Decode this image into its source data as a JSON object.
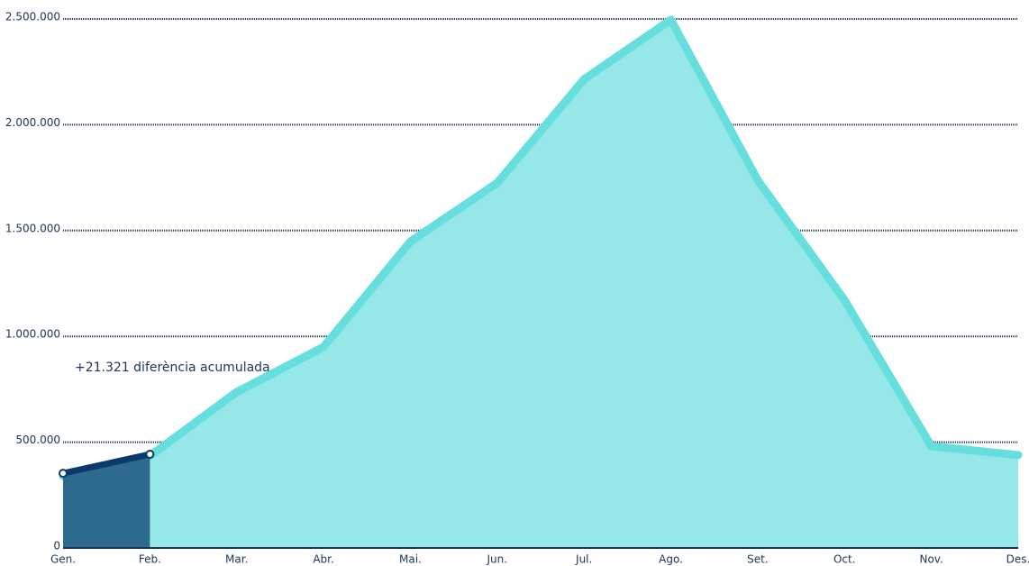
{
  "chart_data": {
    "type": "area",
    "categories": [
      "Gen.",
      "Feb.",
      "Mar.",
      "Abr.",
      "Mai.",
      "Jun.",
      "Jul.",
      "Ago.",
      "Set.",
      "Oct.",
      "Nov.",
      "Des."
    ],
    "series": [
      {
        "color": "#66dede",
        "fill": "#96e8e8",
        "values": [
          340000,
          435000,
          737000,
          950000,
          1448000,
          1725000,
          2215000,
          2496000,
          1738000,
          1171000,
          481000,
          439000
        ]
      },
      {
        "color": "#0a3a6b",
        "fill": "#2d6a8e",
        "values": [
          353000,
          443000,
          null,
          null,
          null,
          null,
          null,
          null,
          null,
          null,
          null,
          null
        ]
      }
    ],
    "ylim": [
      0,
      2500000
    ],
    "yticks": [
      0,
      {
        "value": 500000,
        "label": "500.000"
      },
      {
        "value": 1000000,
        "label": "1.000.000"
      },
      {
        "value": 1500000,
        "label": "1.500.000"
      },
      {
        "value": 2000000,
        "label": "2.000.000"
      },
      {
        "value": 2500000,
        "label": "2.500.000"
      }
    ],
    "grid": true,
    "annotation": "+21.321 diferència acumulada"
  }
}
